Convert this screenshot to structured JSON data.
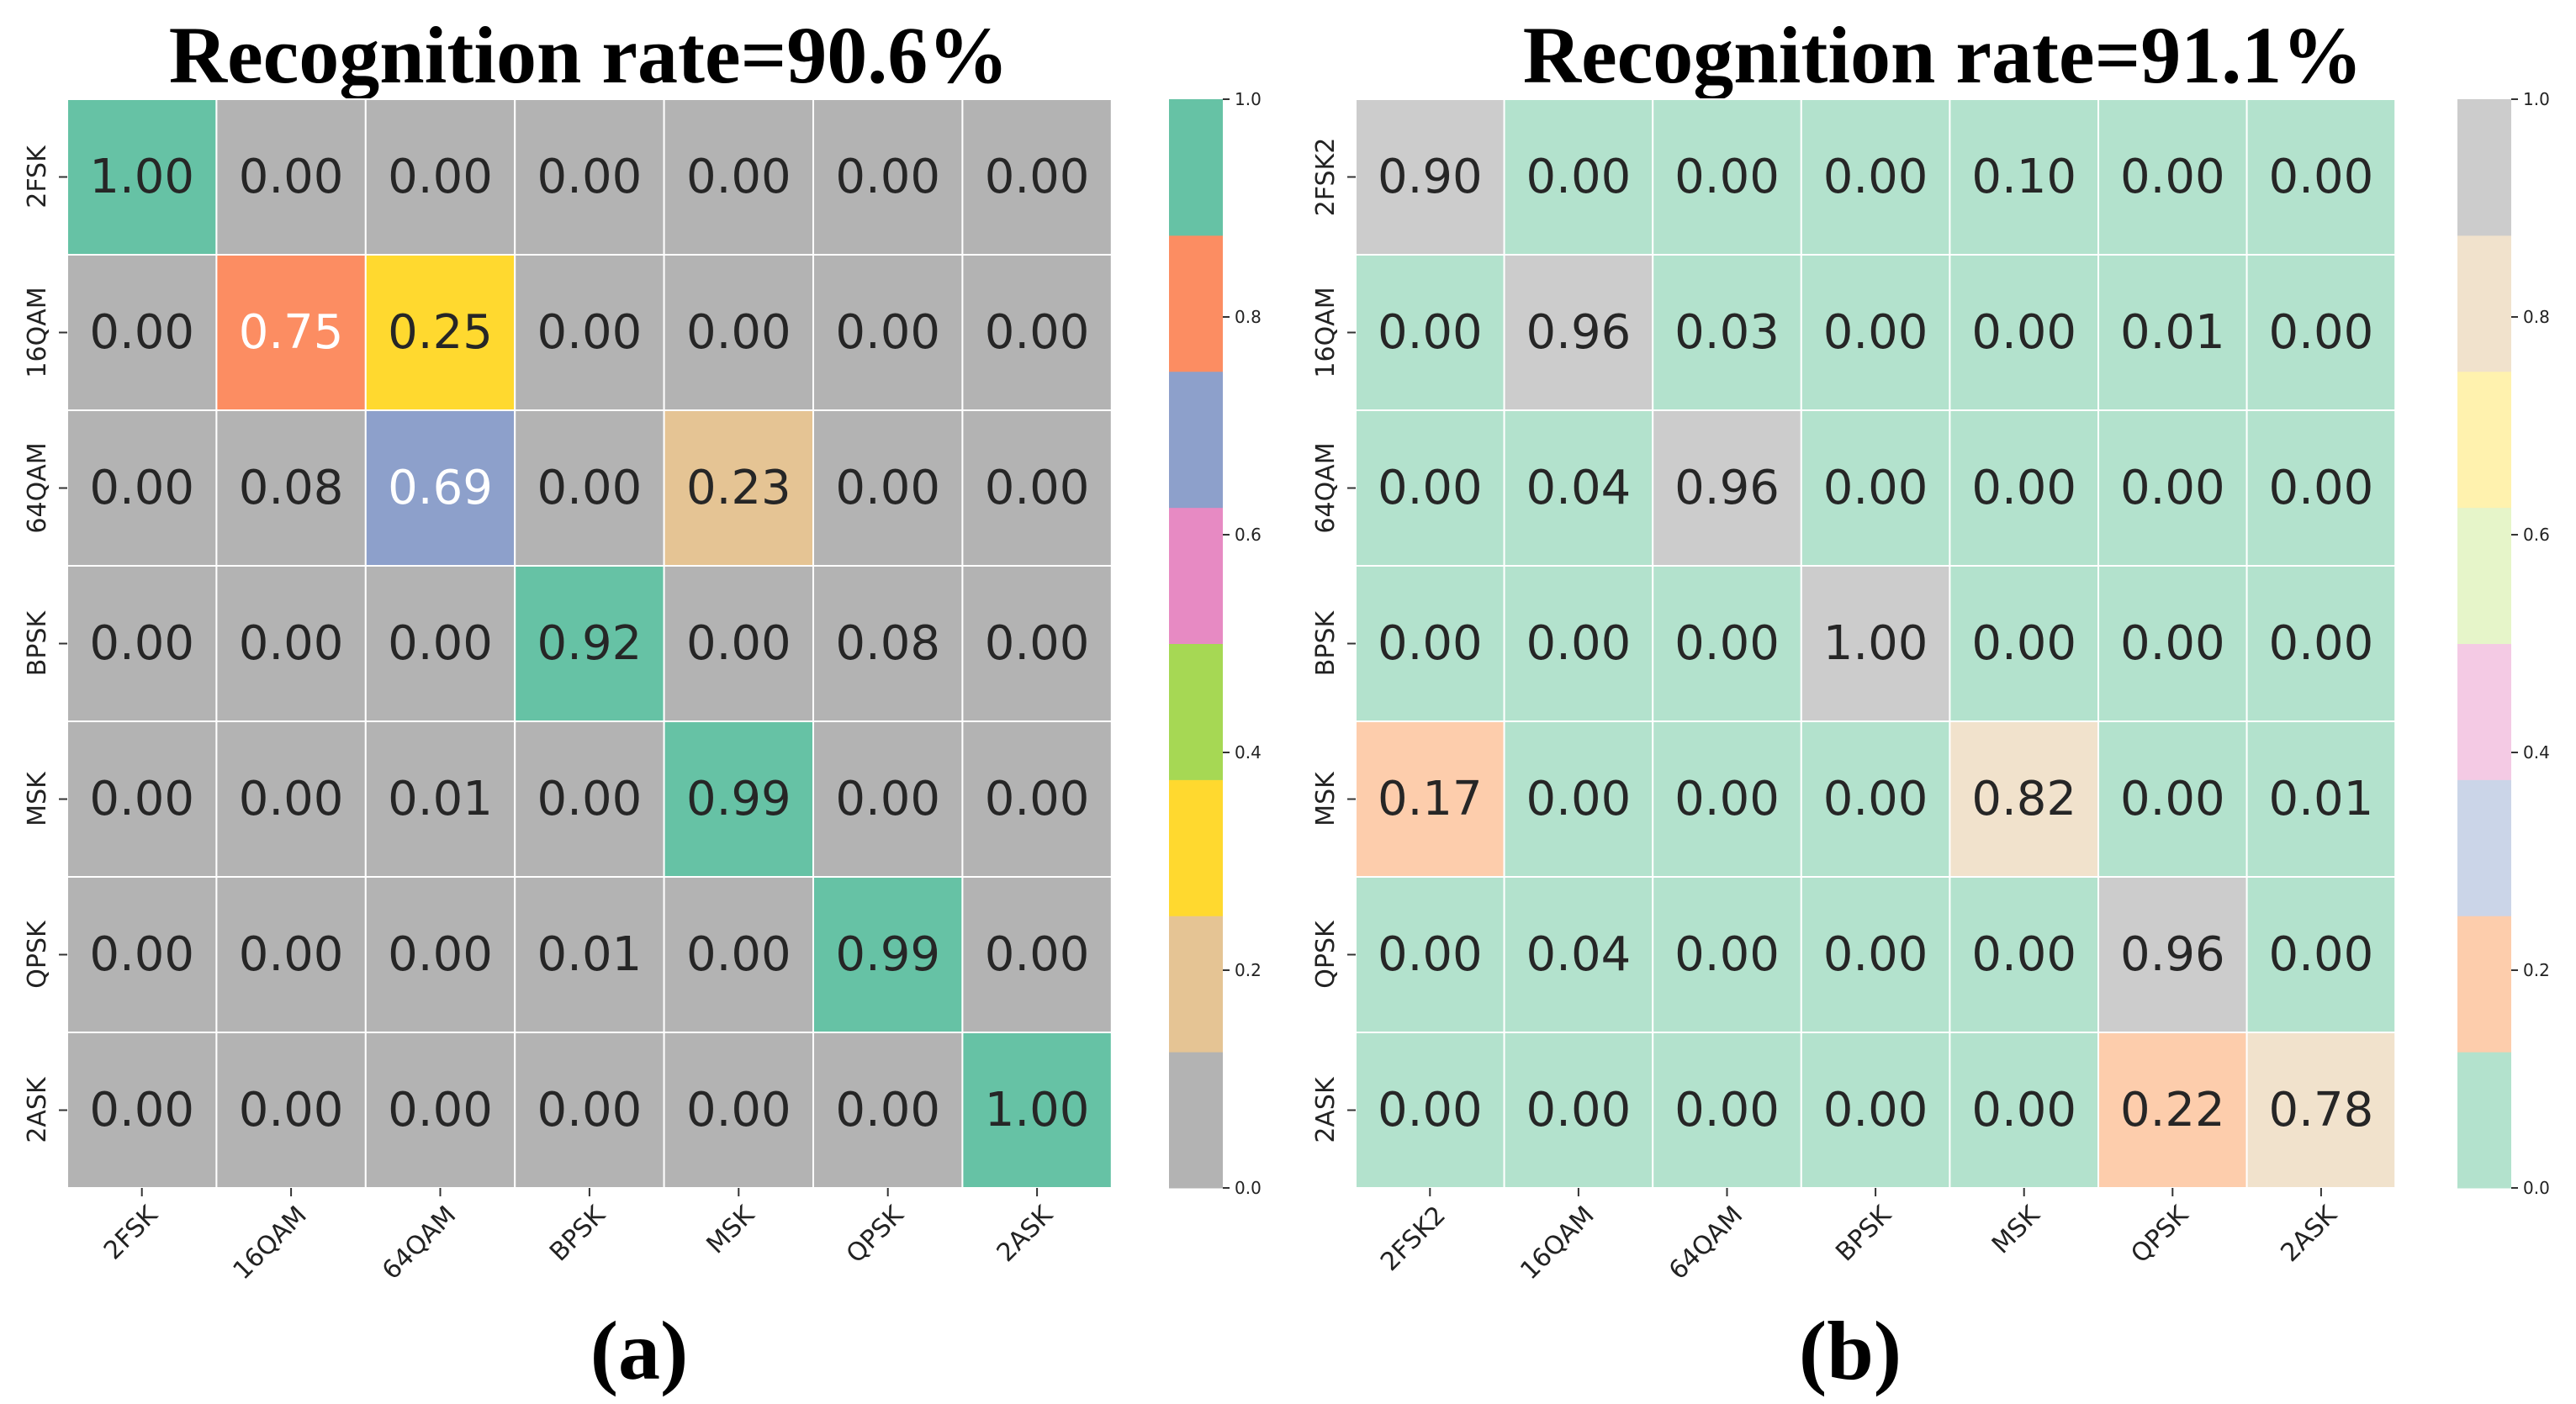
{
  "chart_data": [
    {
      "type": "heatmap",
      "title": "Recognition rate=90.6%",
      "panel_label": "(a)",
      "row_labels": [
        "2FSK",
        "16QAM",
        "64QAM",
        "BPSK",
        "MSK",
        "QPSK",
        "2ASK"
      ],
      "col_labels": [
        "2FSK",
        "16QAM",
        "64QAM",
        "BPSK",
        "MSK",
        "QPSK",
        "2ASK"
      ],
      "values": [
        [
          1.0,
          0.0,
          0.0,
          0.0,
          0.0,
          0.0,
          0.0
        ],
        [
          0.0,
          0.75,
          0.25,
          0.0,
          0.0,
          0.0,
          0.0
        ],
        [
          0.0,
          0.08,
          0.69,
          0.0,
          0.23,
          0.0,
          0.0
        ],
        [
          0.0,
          0.0,
          0.0,
          0.92,
          0.0,
          0.08,
          0.0
        ],
        [
          0.0,
          0.0,
          0.01,
          0.0,
          0.99,
          0.0,
          0.0
        ],
        [
          0.0,
          0.0,
          0.0,
          0.01,
          0.0,
          0.99,
          0.0
        ],
        [
          0.0,
          0.0,
          0.0,
          0.0,
          0.0,
          0.0,
          1.0
        ]
      ],
      "value_format": "0.00",
      "colormap": "Set2_r",
      "colormap_colors": [
        "#b3b3b3",
        "#e5c494",
        "#ffd92f",
        "#a6d854",
        "#e78ac3",
        "#8da0cb",
        "#fc8d62",
        "#66c2a5"
      ],
      "colorbar_range": [
        0.0,
        1.0
      ],
      "colorbar_ticks": [
        "0.0",
        "0.2",
        "0.4",
        "0.6",
        "0.8",
        "1.0"
      ],
      "text_colors": {
        "dark": "#262626",
        "light": "#ffffff"
      }
    },
    {
      "type": "heatmap",
      "title": "Recognition rate=91.1%",
      "panel_label": "(b)",
      "row_labels": [
        "2FSK2",
        "16QAM",
        "64QAM",
        "BPSK",
        "MSK",
        "QPSK",
        "2ASK"
      ],
      "col_labels": [
        "2FSK2",
        "16QAM",
        "64QAM",
        "BPSK",
        "MSK",
        "QPSK",
        "2ASK"
      ],
      "values": [
        [
          0.9,
          0.0,
          0.0,
          0.0,
          0.1,
          0.0,
          0.0
        ],
        [
          0.0,
          0.96,
          0.03,
          0.0,
          0.0,
          0.01,
          0.0
        ],
        [
          0.0,
          0.04,
          0.96,
          0.0,
          0.0,
          0.0,
          0.0
        ],
        [
          0.0,
          0.0,
          0.0,
          1.0,
          0.0,
          0.0,
          0.0
        ],
        [
          0.17,
          0.0,
          0.0,
          0.0,
          0.82,
          0.0,
          0.01
        ],
        [
          0.0,
          0.04,
          0.0,
          0.0,
          0.0,
          0.96,
          0.0
        ],
        [
          0.0,
          0.0,
          0.0,
          0.0,
          0.0,
          0.22,
          0.78
        ]
      ],
      "value_format": "0.00",
      "colormap": "Pastel2",
      "colormap_colors": [
        "#b3e2cd",
        "#fdcdac",
        "#cbd5e8",
        "#f4cae4",
        "#e6f5c9",
        "#fff2ae",
        "#f1e2cc",
        "#cccccc"
      ],
      "colorbar_range": [
        0.0,
        1.0
      ],
      "colorbar_ticks": [
        "0.0",
        "0.2",
        "0.4",
        "0.6",
        "0.8",
        "1.0"
      ],
      "text_colors": {
        "dark": "#262626",
        "light": "#262626"
      }
    }
  ]
}
